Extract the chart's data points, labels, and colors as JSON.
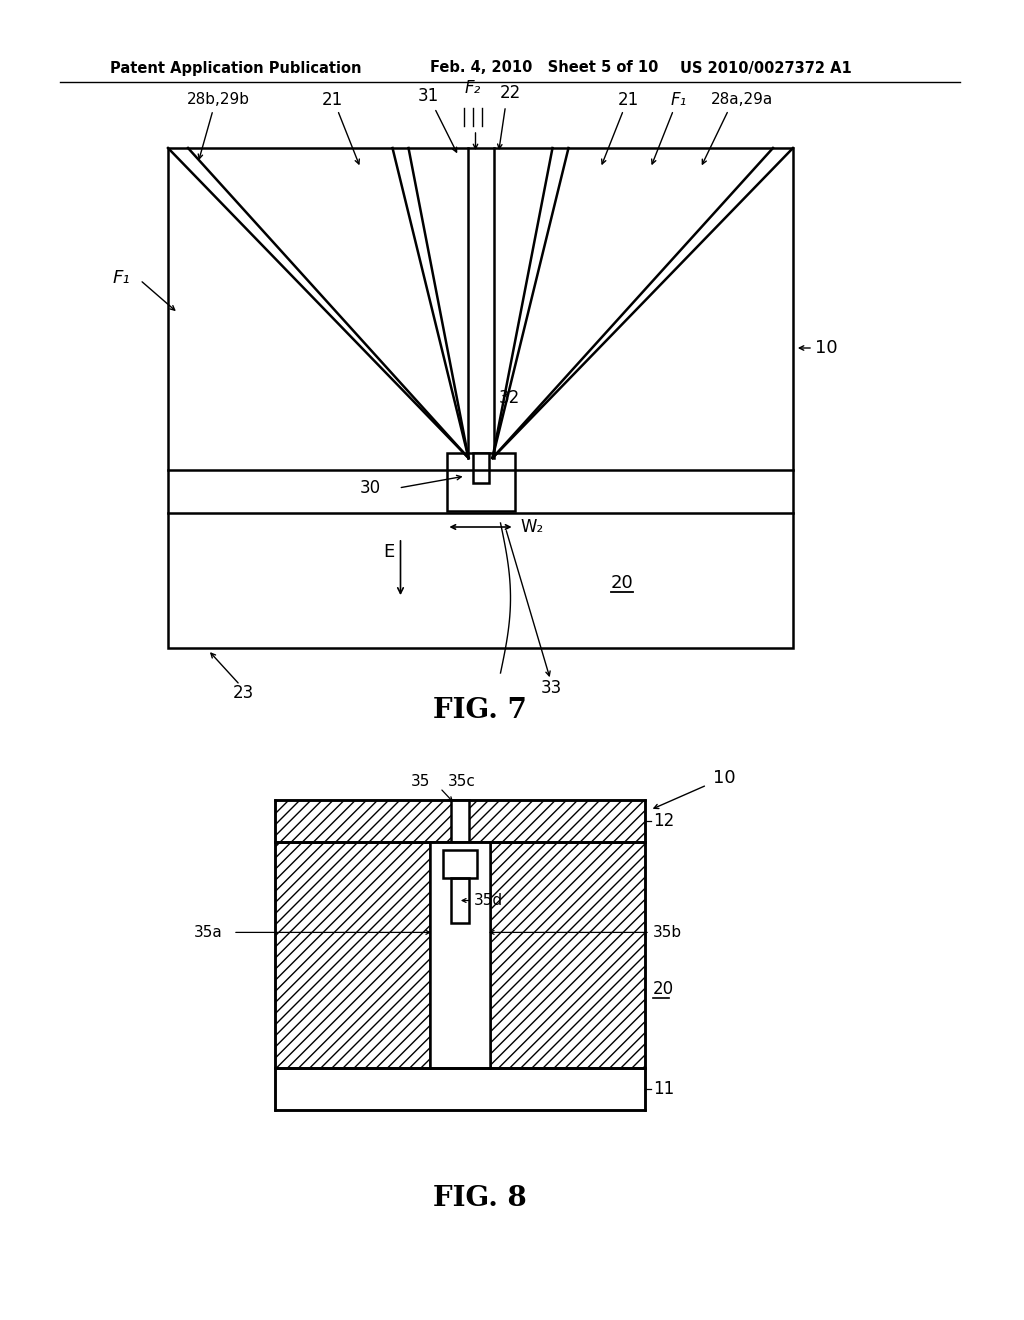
{
  "bg_color": "#ffffff",
  "line_color": "#000000",
  "header_text_left": "Patent Application Publication",
  "header_text_mid": "Feb. 4, 2010   Sheet 5 of 10",
  "header_text_right": "US 2010/0027372 A1",
  "fig7_title": "FIG. 7",
  "fig8_title": "FIG. 8"
}
